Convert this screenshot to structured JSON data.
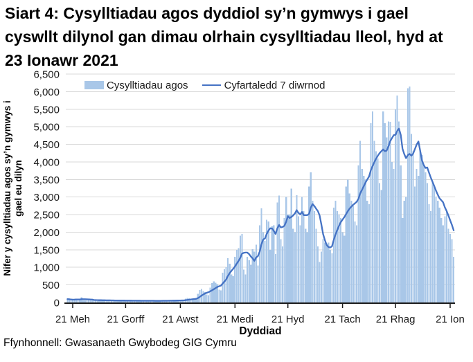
{
  "title": "Siart 4: Cysylltiadau agos dyddiol sy’n gymwys i gael cyswllt dilynol gan dimau olrhain cysylltiadau lleol, hyd at 23 Ionawr 2021",
  "title_lines": [
    "Siart 4: Cysylltiadau agos dyddiol sy’n gymwys i gael",
    "cyswllt dilynol gan dimau olrhain cysylltiadau lleol, hyd at",
    "23 Ionawr 2021"
  ],
  "footer": {
    "source": "Ffynhonnell: Gwasanaeth Gwybodeg GIG Cymru"
  },
  "chart_data": {
    "type": "bar+line",
    "xlabel": "Dyddiad",
    "ylabel": "Nifer y cysylltiadau agos sy’n gymwys i gael eu dilyn",
    "ylabel_lines": [
      "Nifer y cysylltiadau agos sy’n gymwys i",
      "gael eu dilyn"
    ],
    "ylim": [
      0,
      6500
    ],
    "ytick_step": 500,
    "ytick_labels": [
      "6,500",
      "6,000",
      "5,500",
      "5,000",
      "4,500",
      "4,000",
      "3,500",
      "3,000",
      "2,500",
      "2,000",
      "1,500",
      "1,000",
      "500",
      "0"
    ],
    "xtick_labels": [
      "21 Meh",
      "21 Gorff",
      "21 Awst",
      "21 Medi",
      "21 Hyd",
      "21 Tach",
      "21 Rhag",
      "21 Ion"
    ],
    "xtick_day_index": [
      3,
      33,
      64,
      95,
      125,
      156,
      186,
      217
    ],
    "x_unit": "daily",
    "grid": true,
    "legend_position": "top-left",
    "legend": [
      {
        "label": "Cysylltiadau agos",
        "type": "bar",
        "color": "#A9C7E8"
      },
      {
        "label": "Cyfartaledd 7 diwrnod",
        "type": "line",
        "color": "#4472C4"
      }
    ],
    "series": [
      {
        "name": "Cysylltiadau agos",
        "type": "bar",
        "color": "#A9C7E8",
        "values": [
          95,
          90,
          70,
          65,
          95,
          100,
          92,
          88,
          150,
          62,
          58,
          80,
          85,
          75,
          70,
          66,
          48,
          44,
          72,
          75,
          68,
          64,
          60,
          44,
          40,
          66,
          68,
          62,
          58,
          55,
          42,
          38,
          60,
          62,
          58,
          54,
          52,
          40,
          36,
          56,
          60,
          54,
          52,
          50,
          38,
          35,
          55,
          58,
          52,
          50,
          48,
          37,
          34,
          58,
          62,
          56,
          52,
          50,
          40,
          38,
          68,
          72,
          65,
          60,
          58,
          46,
          44,
          110,
          125,
          115,
          105,
          100,
          85,
          95,
          250,
          350,
          380,
          330,
          300,
          230,
          210,
          420,
          550,
          600,
          560,
          520,
          360,
          340,
          850,
          950,
          1000,
          1265,
          1100,
          800,
          750,
          1300,
          1500,
          1550,
          1900,
          1950,
          940,
          800,
          1300,
          1200,
          1070,
          1520,
          1450,
          1640,
          1050,
          2200,
          2675,
          2000,
          1750,
          2350,
          2300,
          1500,
          2170,
          2200,
          1380,
          2850,
          3040,
          1800,
          1600,
          2400,
          3000,
          2500,
          2500,
          3240,
          2100,
          2000,
          3050,
          2450,
          2200,
          3000,
          2600,
          2100,
          2000,
          3300,
          3700,
          2900,
          2600,
          2100,
          1600,
          1150,
          1450,
          1800,
          1700,
          1650,
          1700,
          1500,
          1400,
          2700,
          2900,
          2600,
          2500,
          2400,
          2000,
          1900,
          3300,
          3500,
          3100,
          2900,
          2750,
          2300,
          2200,
          3900,
          4600,
          3800,
          3600,
          3500,
          2900,
          2800,
          5100,
          5440,
          4600,
          4300,
          4100,
          3400,
          3200,
          5440,
          5100,
          4700,
          5150,
          5140,
          4000,
          3800,
          5500,
          5890,
          5150,
          3900,
          2400,
          2900,
          3000,
          6100,
          6150,
          4800,
          4300,
          3300,
          3800,
          3600,
          4300,
          4200,
          3900,
          3700,
          3400,
          2800,
          2600,
          3450,
          3300,
          3000,
          2900,
          2700,
          2400,
          2200,
          2450,
          2570,
          2100,
          1950,
          1800,
          1300
        ]
      },
      {
        "name": "Cyfartaledd 7 diwrnod",
        "type": "line",
        "color": "#4472C4",
        "derived": "trailing 7-day mean of bar series",
        "window": 7
      }
    ],
    "colors": {
      "bars": "#A9C7E8",
      "line": "#4472C4",
      "gridline": "#D9D9D9",
      "axis": "#1A1A1A",
      "text": "#1A1A1A"
    }
  }
}
